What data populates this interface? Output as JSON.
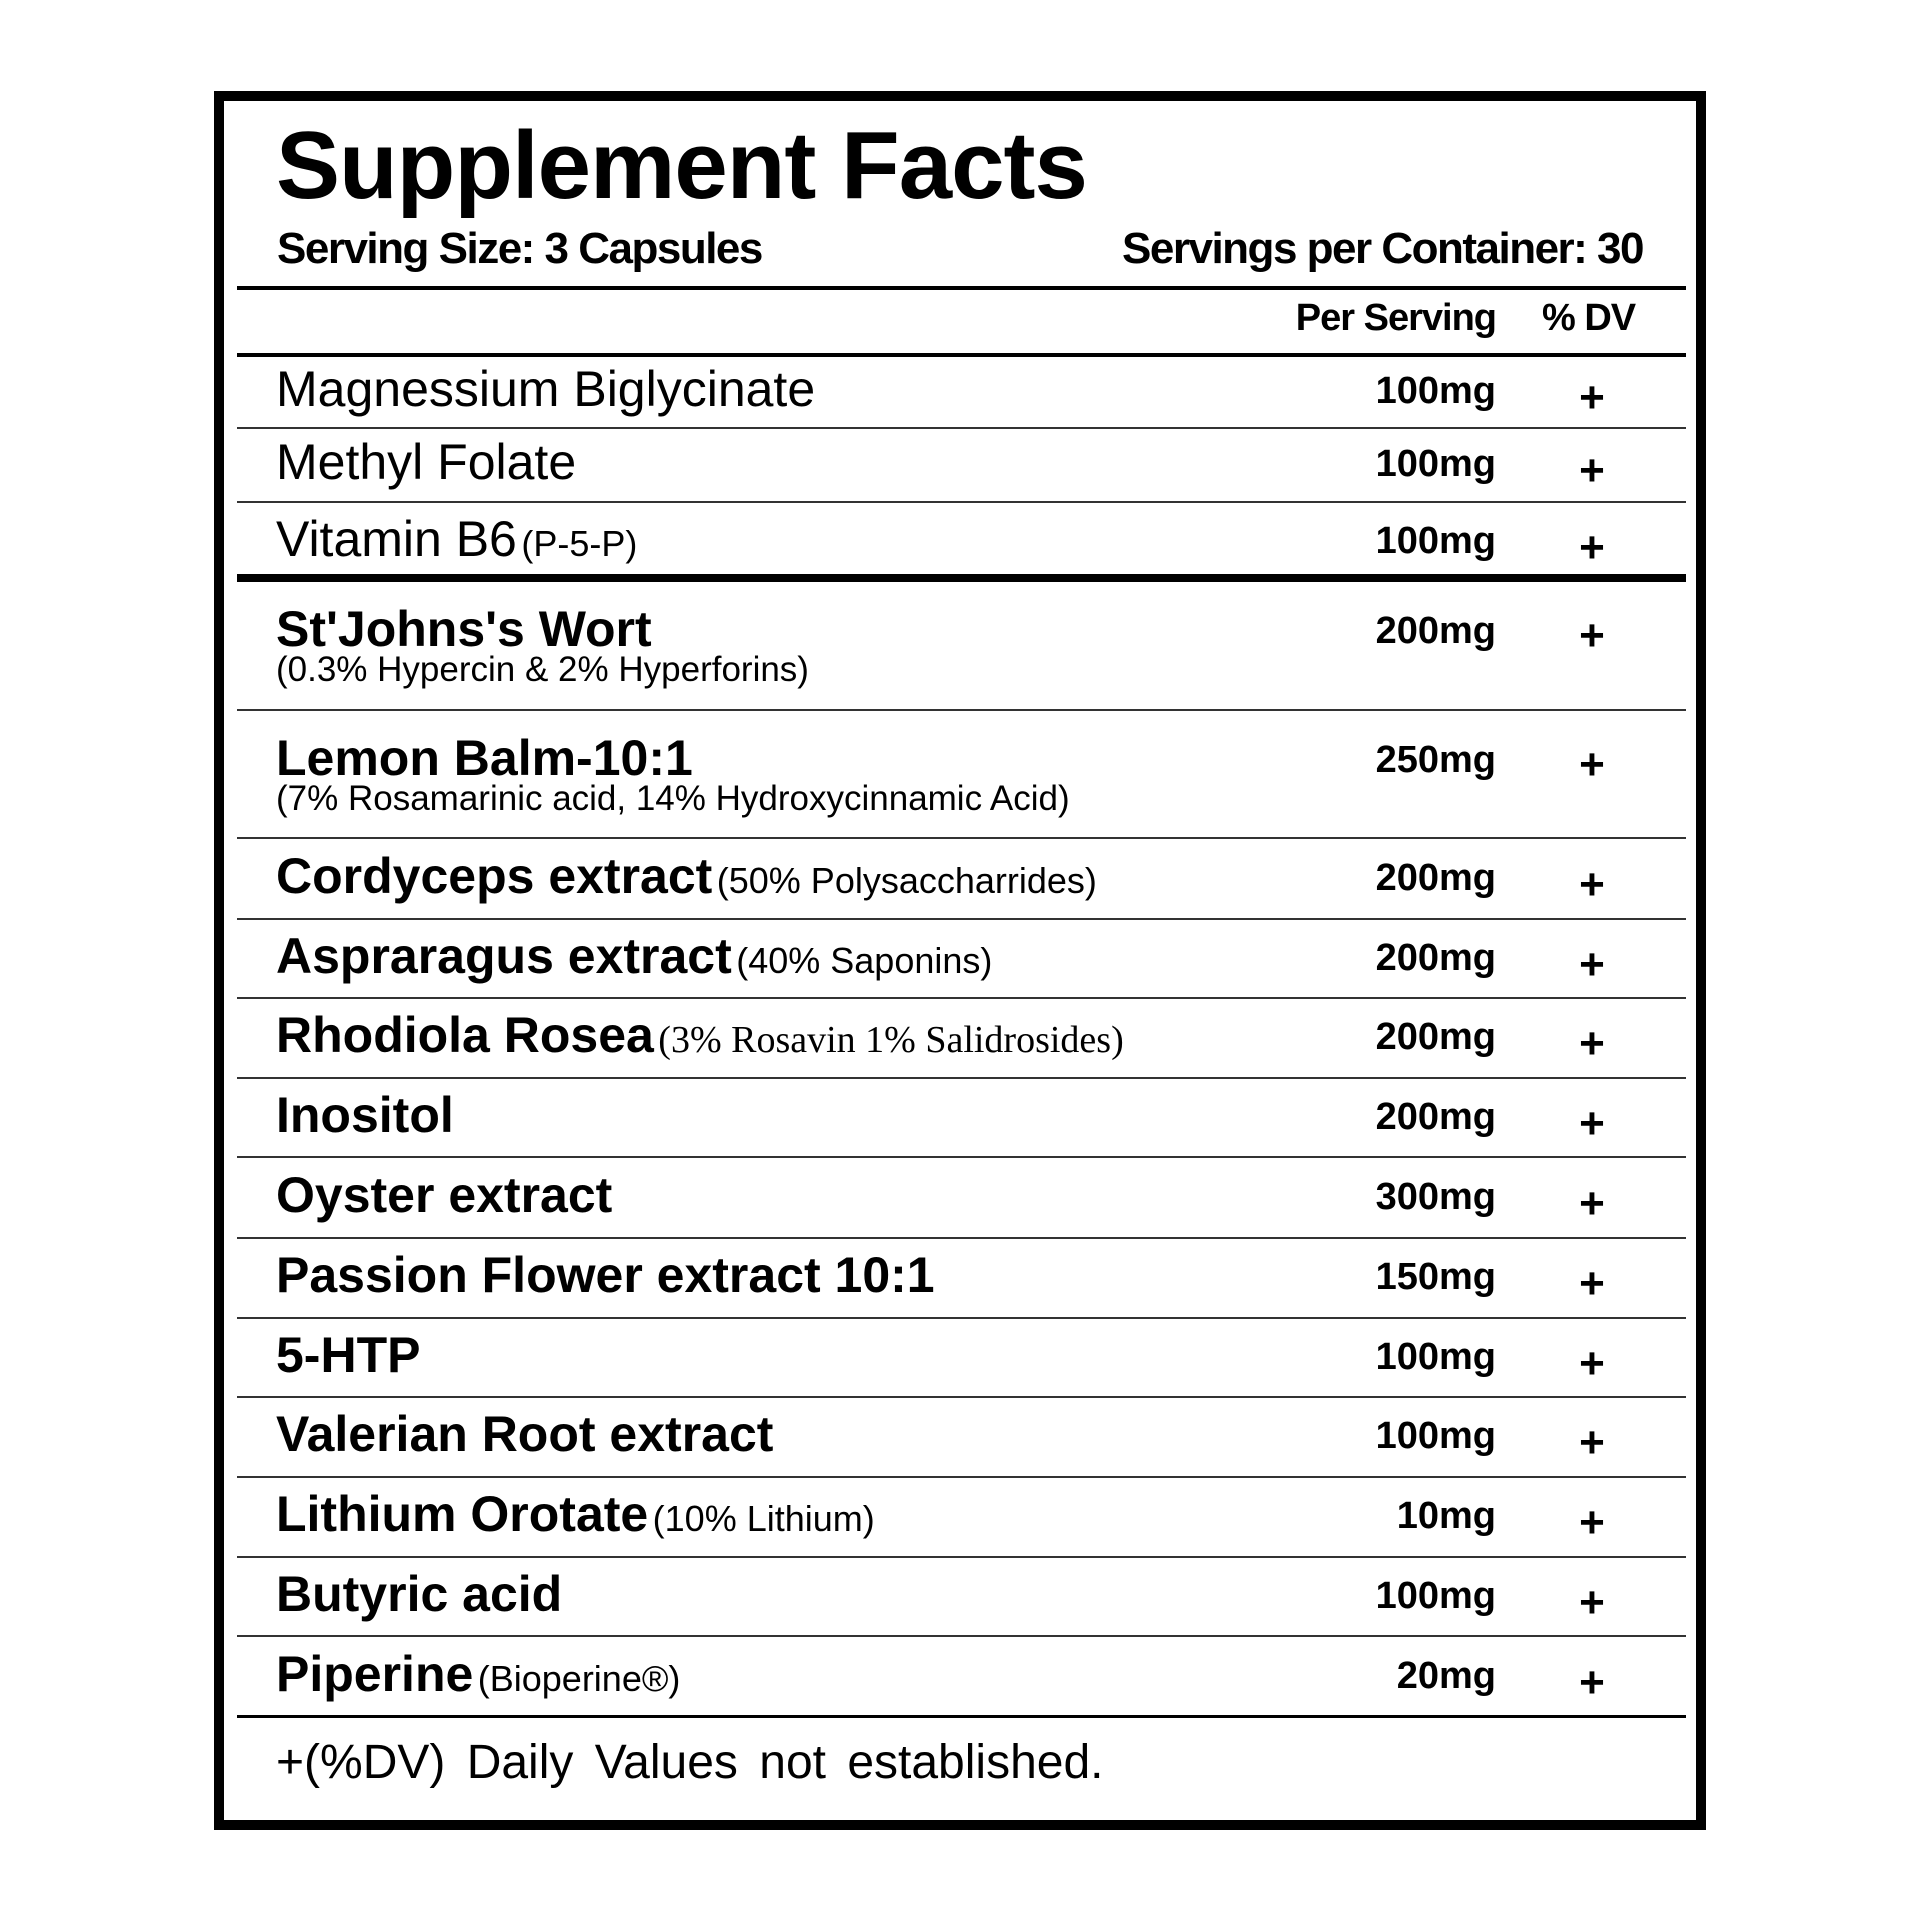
{
  "title": "Supplement Facts",
  "serving_size": "Serving Size: 3 Capsules",
  "servings_per_container": "Servings per Container: 30",
  "headers": {
    "per_serving": "Per Serving",
    "dv": "% DV"
  },
  "ingredients": [
    {
      "name": "Magnessium Biglycinate",
      "amount": "100mg",
      "dv": "+"
    },
    {
      "name": "Methyl Folate",
      "amount": "100mg",
      "dv": "+"
    },
    {
      "name": "Vitamin B6",
      "note": "(P-5-P)",
      "amount": "100mg",
      "dv": "+"
    },
    {
      "name": "St'Johns's Wort",
      "sub": "(0.3% Hypercin & 2% Hyperforins)",
      "amount": "200mg",
      "dv": "+"
    },
    {
      "name": "Lemon Balm-10:1",
      "sub": "(7% Rosamarinic acid, 14% Hydroxycinnamic Acid)",
      "amount": "250mg",
      "dv": "+"
    },
    {
      "name": "Cordyceps extract",
      "note": "(50% Polysaccharrides)",
      "amount": "200mg",
      "dv": "+"
    },
    {
      "name": "Aspraragus extract",
      "note": "(40% Saponins)",
      "amount": "200mg",
      "dv": "+"
    },
    {
      "name": "Rhodiola Rosea",
      "note": "(3% Rosavin 1% Salidrosides)",
      "amount": "200mg",
      "dv": "+"
    },
    {
      "name": "Inositol",
      "amount": "200mg",
      "dv": "+"
    },
    {
      "name": "Oyster extract",
      "amount": "300mg",
      "dv": "+"
    },
    {
      "name": "Passion Flower extract 10:1",
      "amount": "150mg",
      "dv": "+"
    },
    {
      "name": "5-HTP",
      "amount": "100mg",
      "dv": "+"
    },
    {
      "name": "Valerian Root extract",
      "amount": "100mg",
      "dv": "+"
    },
    {
      "name": "Lithium Orotate",
      "note": "(10% Lithium)",
      "amount": "10mg",
      "dv": "+"
    },
    {
      "name": "Butyric acid",
      "amount": "100mg",
      "dv": "+"
    },
    {
      "name": "Piperine",
      "note": "(Bioperine®)",
      "amount": "20mg",
      "dv": "+"
    }
  ],
  "footer": "+(%DV) Daily Values not established."
}
